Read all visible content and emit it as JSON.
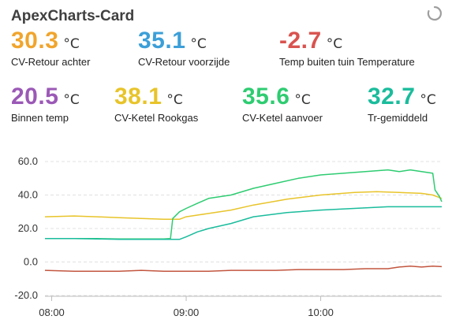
{
  "card": {
    "title": "ApexCharts-Card"
  },
  "stats": [
    {
      "value": "30.3",
      "unit": "°C",
      "name": "CV-Retour achter",
      "color": "#F0A52D"
    },
    {
      "value": "35.1",
      "unit": "°C",
      "name": "CV-Retour voorzijde",
      "color": "#3C9FD8"
    },
    {
      "value": "-2.7",
      "unit": "°C",
      "name": "Temp buiten tuin Temperature",
      "color": "#D9534F"
    },
    {
      "value": "20.5",
      "unit": "°C",
      "name": "Binnen temp",
      "color": "#9B59B6"
    },
    {
      "value": "38.1",
      "unit": "°C",
      "name": "CV-Ketel Rookgas",
      "color": "#E8C42A"
    },
    {
      "value": "35.6",
      "unit": "°C",
      "name": "CV-Ketel aanvoer",
      "color": "#2ECC71"
    },
    {
      "value": "32.7",
      "unit": "°C",
      "name": "Tr-gemiddeld",
      "color": "#1ABC9C"
    }
  ],
  "chart_data": {
    "type": "line",
    "xlabel": "",
    "ylabel": "",
    "ylim": [
      -20,
      60
    ],
    "yticks": [
      "60.0",
      "40.0",
      "20.0",
      "0.0",
      "-20.0"
    ],
    "ytick_values": [
      60,
      40,
      20,
      0,
      -20
    ],
    "xticks": [
      "08:00",
      "09:00",
      "10:00"
    ],
    "xtick_values": [
      "08:00",
      "09:00",
      "10:00"
    ],
    "xlim": [
      "07:57",
      "10:54"
    ],
    "grid": true,
    "series": [
      {
        "color": "#E8C42A",
        "x": [
          "07:57",
          "08:10",
          "08:20",
          "08:30",
          "08:40",
          "08:50",
          "08:57",
          "09:00",
          "09:05",
          "09:10",
          "09:20",
          "09:30",
          "09:45",
          "10:00",
          "10:15",
          "10:25",
          "10:35",
          "10:45",
          "10:50",
          "10:54"
        ],
        "y": [
          27,
          27.5,
          27,
          26.5,
          26,
          25.5,
          25.5,
          27,
          28,
          29,
          31,
          34,
          37.5,
          40,
          41.5,
          42,
          41.5,
          41,
          40,
          38
        ]
      },
      {
        "color": "#2ECC71",
        "x": [
          "07:57",
          "08:10",
          "08:20",
          "08:30",
          "08:40",
          "08:50",
          "08:53",
          "08:54",
          "08:57",
          "09:00",
          "09:05",
          "09:10",
          "09:20",
          "09:30",
          "09:40",
          "09:50",
          "10:00",
          "10:10",
          "10:20",
          "10:30",
          "10:35",
          "10:40",
          "10:45",
          "10:50",
          "10:51",
          "10:53",
          "10:54"
        ],
        "y": [
          14,
          14,
          14,
          13.8,
          13.8,
          13.8,
          14,
          26,
          30,
          32,
          35,
          38,
          40,
          44,
          47,
          50,
          52,
          53,
          54,
          55,
          54,
          55,
          54,
          53,
          43,
          39,
          36
        ]
      },
      {
        "color": "#1ABC9C",
        "x": [
          "07:57",
          "08:10",
          "08:20",
          "08:30",
          "08:40",
          "08:50",
          "08:57",
          "09:00",
          "09:05",
          "09:10",
          "09:20",
          "09:30",
          "09:45",
          "10:00",
          "10:15",
          "10:30",
          "10:45",
          "10:54"
        ],
        "y": [
          14,
          14,
          13.8,
          13.5,
          13.5,
          13.5,
          13.5,
          15,
          18,
          20,
          23,
          27,
          29.5,
          31,
          32,
          33,
          33,
          33
        ]
      },
      {
        "color": "#C2563F",
        "x": [
          "07:57",
          "08:10",
          "08:20",
          "08:30",
          "08:40",
          "08:50",
          "09:00",
          "09:10",
          "09:20",
          "09:30",
          "09:40",
          "09:50",
          "10:00",
          "10:10",
          "10:20",
          "10:30",
          "10:35",
          "10:40",
          "10:45",
          "10:50",
          "10:54"
        ],
        "y": [
          -5,
          -5.5,
          -5.5,
          -5.5,
          -5,
          -5.5,
          -5.5,
          -5.5,
          -5,
          -5,
          -5,
          -4.5,
          -4.5,
          -4.5,
          -4,
          -4,
          -3,
          -2.5,
          -3,
          -2.5,
          -2.8
        ]
      }
    ]
  }
}
